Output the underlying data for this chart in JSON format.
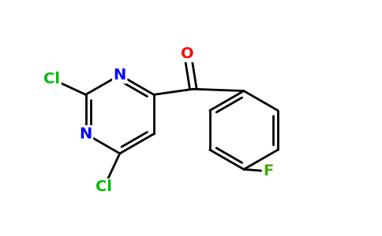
{
  "background_color": "#ffffff",
  "figsize": [
    4.84,
    3.0
  ],
  "dpi": 100,
  "atom_colors": {
    "C": "#000000",
    "N": "#0000ff",
    "O": "#ff0000",
    "Cl": "#00bb00",
    "F": "#44aa00"
  },
  "bond_color": "#000000",
  "bond_width": 2.0,
  "font_size": 14,
  "font_weight": "bold",
  "xlim": [
    0,
    10
  ],
  "ylim": [
    0,
    6.2
  ]
}
